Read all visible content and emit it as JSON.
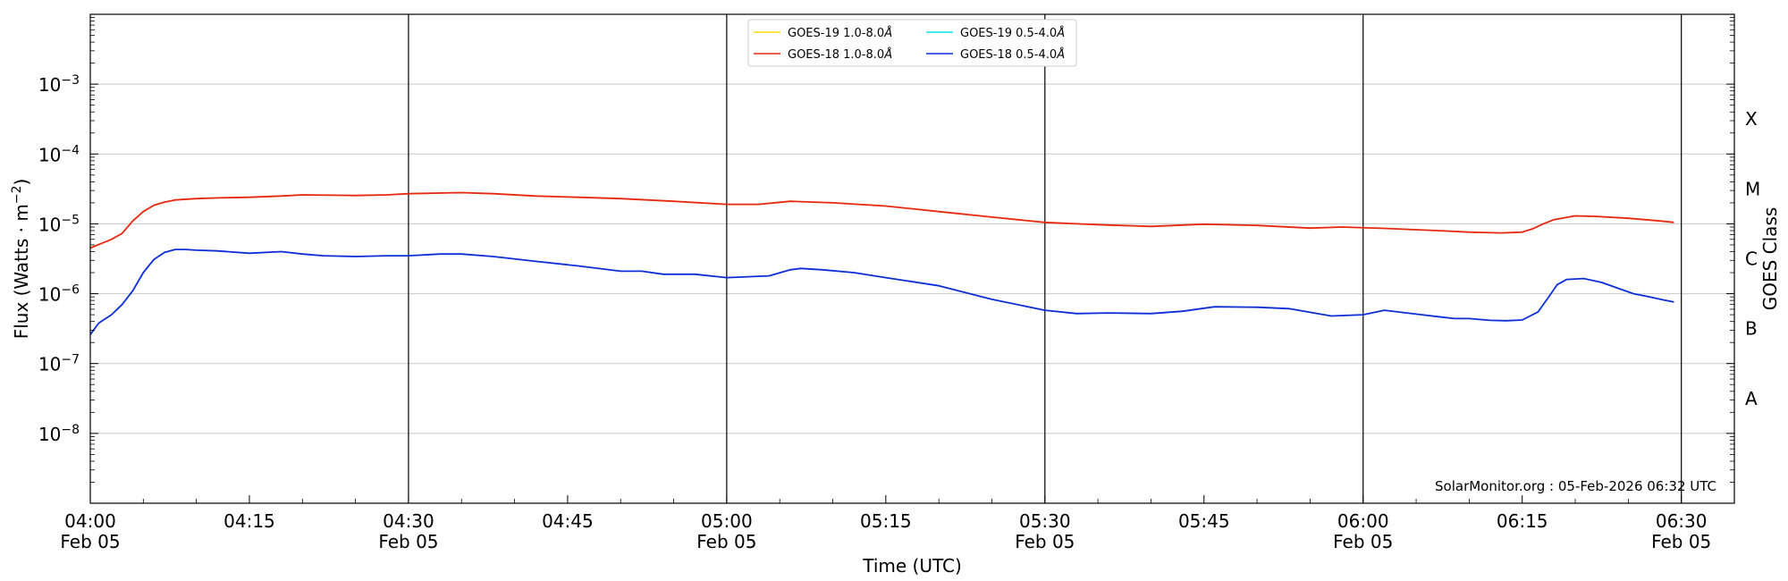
{
  "chart_data": {
    "type": "line",
    "title": "",
    "xlabel": "Time (UTC)",
    "ylabel": "Flux (Watts · m",
    "ylabel_sup": "−2",
    "ylabel_close": ")",
    "y2label": "GOES Class",
    "yscale": "log",
    "ylim": [
      1e-09,
      0.01
    ],
    "xlim": [
      0,
      155
    ],
    "x_unit": "minutes after 04:00 UTC, 05-Feb-2026",
    "x_ticks": [
      {
        "t": 0,
        "time": "04:00",
        "date": "Feb 05"
      },
      {
        "t": 15,
        "time": "04:15",
        "date": ""
      },
      {
        "t": 30,
        "time": "04:30",
        "date": "Feb 05"
      },
      {
        "t": 45,
        "time": "04:45",
        "date": ""
      },
      {
        "t": 60,
        "time": "05:00",
        "date": "Feb 05"
      },
      {
        "t": 75,
        "time": "05:15",
        "date": ""
      },
      {
        "t": 90,
        "time": "05:30",
        "date": "Feb 05"
      },
      {
        "t": 105,
        "time": "05:45",
        "date": ""
      },
      {
        "t": 120,
        "time": "06:00",
        "date": "Feb 05"
      },
      {
        "t": 135,
        "time": "06:15",
        "date": ""
      },
      {
        "t": 150,
        "time": "06:30",
        "date": "Feb 05"
      }
    ],
    "vertical_lines": [
      30,
      60,
      90,
      120,
      150
    ],
    "y_ticks": [
      {
        "exp": -8,
        "base": "10",
        "sup": "−8"
      },
      {
        "exp": -7,
        "base": "10",
        "sup": "−7"
      },
      {
        "exp": -6,
        "base": "10",
        "sup": "−6"
      },
      {
        "exp": -5,
        "base": "10",
        "sup": "−5"
      },
      {
        "exp": -4,
        "base": "10",
        "sup": "−4"
      },
      {
        "exp": -3,
        "base": "10",
        "sup": "−3"
      }
    ],
    "goes_classes": [
      {
        "label": "A",
        "center_exp": -7.5
      },
      {
        "label": "B",
        "center_exp": -6.5
      },
      {
        "label": "C",
        "center_exp": -5.5
      },
      {
        "label": "M",
        "center_exp": -4.5
      },
      {
        "label": "X",
        "center_exp": -3.5
      }
    ],
    "grid": "horizontal at decades",
    "legend_placement": "top-center",
    "credit": "SolarMonitor.org : 05-Feb-2026 06:32 UTC",
    "series": [
      {
        "name": "GOES-19 1.0-8.0",
        "color": "#ffd700",
        "x": [],
        "y": []
      },
      {
        "name": "GOES-19 0.5-4.0",
        "color": "#00e5ee",
        "x": [],
        "y": []
      },
      {
        "name": "GOES-18 1.0-8.0",
        "color": "#e8280c",
        "x": [
          0,
          1,
          2,
          3,
          4,
          5,
          6,
          7,
          8,
          10,
          12,
          15,
          18,
          20,
          25,
          28,
          30,
          35,
          38,
          42,
          46,
          50,
          55,
          60,
          63,
          66,
          70,
          75,
          80,
          85,
          90,
          93,
          96,
          100,
          105,
          110,
          115,
          118,
          122,
          127,
          130,
          133,
          135,
          136,
          137,
          138,
          140,
          142,
          145,
          148,
          149.3
        ],
        "y": [
          4.5e-06,
          5.2e-06,
          6e-06,
          7.3e-06,
          1.1e-05,
          1.5e-05,
          1.85e-05,
          2.05e-05,
          2.2e-05,
          2.3e-05,
          2.35e-05,
          2.4e-05,
          2.5e-05,
          2.6e-05,
          2.55e-05,
          2.6e-05,
          2.7e-05,
          2.8e-05,
          2.7e-05,
          2.5e-05,
          2.4e-05,
          2.3e-05,
          2.1e-05,
          1.9e-05,
          1.9e-05,
          2.1e-05,
          2e-05,
          1.8e-05,
          1.5e-05,
          1.25e-05,
          1.05e-05,
          1e-05,
          9.6e-06,
          9.2e-06,
          9.9e-06,
          9.5e-06,
          8.7e-06,
          9e-06,
          8.6e-06,
          8e-06,
          7.6e-06,
          7.4e-06,
          7.6e-06,
          8.5e-06,
          1e-05,
          1.15e-05,
          1.3e-05,
          1.28e-05,
          1.2e-05,
          1.1e-05,
          1.05e-05
        ]
      },
      {
        "name": "GOES-18 0.5-4.0",
        "color": "#0c2ed8",
        "x": [
          0,
          0.8,
          2,
          3,
          4,
          5,
          6,
          7,
          8,
          9,
          10,
          12,
          15,
          18,
          20,
          22,
          25,
          28,
          30,
          33,
          35,
          38,
          42,
          46,
          50,
          52,
          54,
          57,
          60,
          62,
          64,
          66,
          67,
          69,
          72,
          75,
          80,
          85,
          90,
          93,
          96,
          100,
          103,
          106,
          110,
          113,
          117,
          120,
          122,
          125,
          127,
          128.6,
          130,
          132,
          133.5,
          135,
          136.5,
          137.5,
          138.3,
          139.2,
          140.8,
          142.5,
          144,
          145.5,
          147,
          148.2,
          149.3
        ],
        "y": [
          2.6e-07,
          3.8e-07,
          5e-07,
          7e-07,
          1.1e-06,
          2e-06,
          3.1e-06,
          3.9e-06,
          4.3e-06,
          4.3e-06,
          4.2e-06,
          4.1e-06,
          3.8e-06,
          4e-06,
          3.7e-06,
          3.5e-06,
          3.4e-06,
          3.5e-06,
          3.5e-06,
          3.7e-06,
          3.7e-06,
          3.4e-06,
          2.9e-06,
          2.5e-06,
          2.1e-06,
          2.1e-06,
          1.9e-06,
          1.9e-06,
          1.7e-06,
          1.75e-06,
          1.8e-06,
          2.2e-06,
          2.3e-06,
          2.2e-06,
          2e-06,
          1.7e-06,
          1.3e-06,
          8.3e-07,
          5.8e-07,
          5.2e-07,
          5.3e-07,
          5.2e-07,
          5.6e-07,
          6.5e-07,
          6.4e-07,
          6.1e-07,
          4.8e-07,
          5e-07,
          5.8e-07,
          5.1e-07,
          4.7e-07,
          4.4e-07,
          4.4e-07,
          4.15e-07,
          4.1e-07,
          4.2e-07,
          5.5e-07,
          9e-07,
          1.35e-06,
          1.6e-06,
          1.65e-06,
          1.45e-06,
          1.2e-06,
          1e-06,
          9e-07,
          8.2e-07,
          7.6e-07
        ]
      }
    ]
  }
}
